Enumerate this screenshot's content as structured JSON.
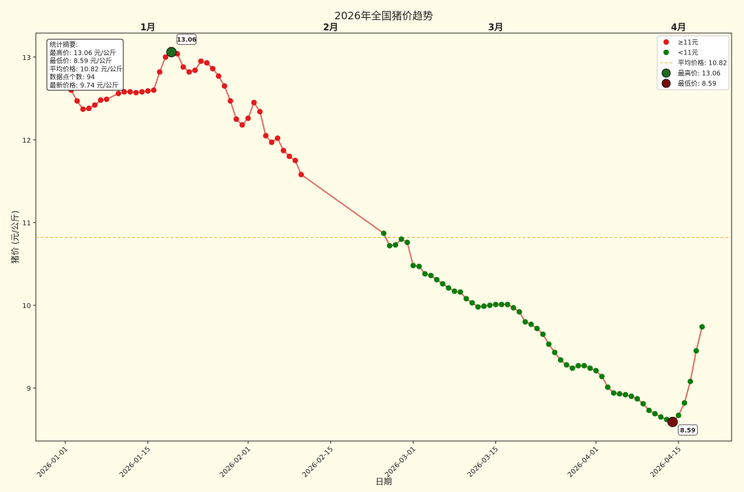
{
  "chart_data": {
    "type": "line",
    "title": "2026年全国猪价趋势",
    "xlabel": "日期",
    "ylabel": "猪价 (元/公斤)",
    "x": [
      "2026-01-02",
      "2026-01-03",
      "2026-01-04",
      "2026-01-05",
      "2026-01-06",
      "2026-01-07",
      "2026-01-08",
      "2026-01-10",
      "2026-01-11",
      "2026-01-12",
      "2026-01-13",
      "2026-01-14",
      "2026-01-15",
      "2026-01-16",
      "2026-01-17",
      "2026-01-18",
      "2026-01-19",
      "2026-01-20",
      "2026-01-21",
      "2026-01-22",
      "2026-01-23",
      "2026-01-24",
      "2026-01-25",
      "2026-01-26",
      "2026-01-27",
      "2026-01-28",
      "2026-01-29",
      "2026-01-30",
      "2026-01-31",
      "2026-02-01",
      "2026-02-02",
      "2026-02-03",
      "2026-02-04",
      "2026-02-05",
      "2026-02-06",
      "2026-02-07",
      "2026-02-08",
      "2026-02-09",
      "2026-02-10",
      "2026-02-24",
      "2026-02-25",
      "2026-02-26",
      "2026-02-27",
      "2026-02-28",
      "2026-03-01",
      "2026-03-02",
      "2026-03-03",
      "2026-03-04",
      "2026-03-05",
      "2026-03-06",
      "2026-03-07",
      "2026-03-08",
      "2026-03-09",
      "2026-03-10",
      "2026-03-11",
      "2026-03-12",
      "2026-03-13",
      "2026-03-14",
      "2026-03-15",
      "2026-03-16",
      "2026-03-17",
      "2026-03-18",
      "2026-03-19",
      "2026-03-20",
      "2026-03-21",
      "2026-03-22",
      "2026-03-23",
      "2026-03-24",
      "2026-03-25",
      "2026-03-26",
      "2026-03-27",
      "2026-03-28",
      "2026-03-29",
      "2026-03-30",
      "2026-03-31",
      "2026-04-01",
      "2026-04-02",
      "2026-04-03",
      "2026-04-04",
      "2026-04-05",
      "2026-04-06",
      "2026-04-07",
      "2026-04-08",
      "2026-04-09",
      "2026-04-10",
      "2026-04-11",
      "2026-04-12",
      "2026-04-13",
      "2026-04-14",
      "2026-04-15",
      "2026-04-16",
      "2026-04-17",
      "2026-04-18",
      "2026-04-19"
    ],
    "values": [
      12.6,
      12.47,
      12.37,
      12.38,
      12.42,
      12.48,
      12.49,
      12.56,
      12.58,
      12.58,
      12.57,
      12.58,
      12.59,
      12.6,
      12.82,
      13.0,
      13.06,
      13.04,
      12.88,
      12.82,
      12.84,
      12.95,
      12.93,
      12.86,
      12.77,
      12.65,
      12.47,
      12.25,
      12.18,
      12.26,
      12.45,
      12.34,
      12.05,
      11.97,
      12.02,
      11.87,
      11.8,
      11.75,
      11.58,
      10.87,
      10.72,
      10.73,
      10.8,
      10.76,
      10.48,
      10.47,
      10.38,
      10.36,
      10.31,
      10.26,
      10.21,
      10.17,
      10.16,
      10.08,
      10.03,
      9.98,
      9.99,
      10.0,
      10.01,
      10.01,
      10.01,
      9.97,
      9.92,
      9.8,
      9.77,
      9.72,
      9.65,
      9.53,
      9.43,
      9.34,
      9.28,
      9.24,
      9.27,
      9.27,
      9.24,
      9.21,
      9.14,
      9.01,
      8.94,
      8.93,
      8.92,
      8.9,
      8.87,
      8.81,
      8.73,
      8.69,
      8.65,
      8.62,
      8.59,
      8.67,
      8.82,
      9.08,
      9.45,
      9.74
    ],
    "line_color": "#d9534f",
    "threshold": 11,
    "point_series": [
      {
        "name": "≥11元",
        "color": "#e31a1c"
      },
      {
        "name": "<11元",
        "color": "#0a7d0a"
      }
    ],
    "avg_line": {
      "value": 10.82,
      "label": "平均价格: 10.82",
      "color": "#e0b020"
    },
    "max_point": {
      "x": "2026-01-19",
      "value": 13.06,
      "label": "最高价: 13.06",
      "value_label": "13.06",
      "color": "#1f6b1f"
    },
    "min_point": {
      "x": "2026-04-14",
      "value": 8.59,
      "label": "最低价: 8.59",
      "value_label": "8.59",
      "color": "#7a0a0a"
    },
    "stats": [
      "统计摘要:",
      "最高价: 13.06 元/公斤",
      "最低价: 8.59 元/公斤",
      "平均价格: 10.82 元/公斤",
      "数据点个数: 94",
      "最新价格: 9.74 元/公斤"
    ],
    "month_labels": [
      {
        "x": "2026-01-15",
        "label": "1月"
      },
      {
        "x": "2026-02-15",
        "label": "2月"
      },
      {
        "x": "2026-03-15",
        "label": "3月"
      },
      {
        "x": "2026-04-15",
        "label": "4月"
      }
    ],
    "xlim": [
      "2025-12-27",
      "2026-04-24"
    ],
    "xticks": [
      "2026-01-01",
      "2026-01-15",
      "2026-02-01",
      "2026-02-15",
      "2026-03-01",
      "2026-03-15",
      "2026-04-01",
      "2026-04-15"
    ],
    "ylim": [
      8.36,
      13.29
    ],
    "yticks": [
      9,
      10,
      11,
      12,
      13
    ],
    "grid": false,
    "legend": "upper right"
  }
}
